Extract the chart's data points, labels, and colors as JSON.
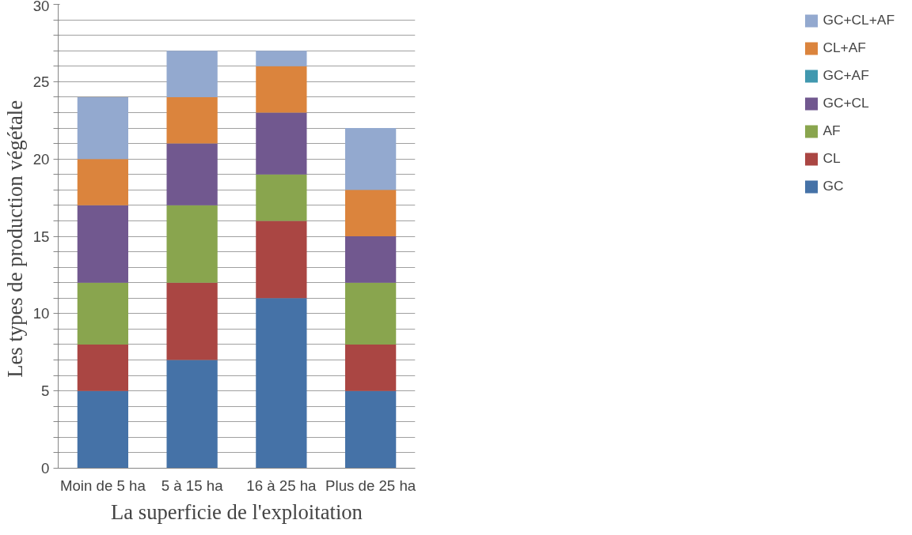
{
  "chart_data": {
    "type": "bar",
    "stacked": true,
    "xlabel": "La superficie de l'exploitation",
    "ylabel": "Les  types de production végétale",
    "categories": [
      "Moin de 5 ha",
      "5 à 15 ha",
      "16 à 25 ha",
      "Plus de 25 ha"
    ],
    "series": [
      {
        "name": "GC",
        "color": "#4572a7",
        "values": [
          5,
          7,
          11,
          5
        ]
      },
      {
        "name": "CL",
        "color": "#aa4643",
        "values": [
          3,
          5,
          5,
          3
        ]
      },
      {
        "name": "AF",
        "color": "#89a54e",
        "values": [
          4,
          5,
          3,
          4
        ]
      },
      {
        "name": "GC+CL",
        "color": "#71588f",
        "values": [
          5,
          4,
          4,
          3
        ]
      },
      {
        "name": "GC+AF",
        "color": "#4198af",
        "values": [
          0,
          0,
          0,
          0
        ]
      },
      {
        "name": "CL+AF",
        "color": "#db843d",
        "values": [
          3,
          3,
          3,
          3
        ]
      },
      {
        "name": "GC+CL+AF",
        "color": "#93a9cf",
        "values": [
          4,
          3,
          1,
          4
        ]
      }
    ],
    "ylim": [
      0,
      30
    ],
    "yticks": [
      0,
      {
        "value": 1,
        "label": null
      },
      {
        "value": 2,
        "label": null
      },
      {
        "value": 3,
        "label": null
      },
      {
        "value": 4,
        "label": null
      },
      5,
      {
        "value": 6,
        "label": null
      },
      {
        "value": 7,
        "label": null
      },
      {
        "value": 8,
        "label": null
      },
      {
        "value": 9,
        "label": null
      },
      10,
      {
        "value": 11,
        "label": null
      },
      {
        "value": 12,
        "label": null
      },
      {
        "value": 13,
        "label": null
      },
      {
        "value": 14,
        "label": null
      },
      15,
      {
        "value": 16,
        "label": null
      },
      {
        "value": 17,
        "label": null
      },
      {
        "value": 18,
        "label": null
      },
      {
        "value": 19,
        "label": null
      },
      20,
      {
        "value": 21,
        "label": null
      },
      {
        "value": 22,
        "label": null
      },
      {
        "value": 23,
        "label": null
      },
      {
        "value": 24,
        "label": null
      },
      25,
      {
        "value": 26,
        "label": null
      },
      {
        "value": 27,
        "label": null
      },
      {
        "value": 28,
        "label": null
      },
      {
        "value": 29,
        "label": null
      },
      30
    ],
    "grid": "y",
    "legend": "right"
  }
}
